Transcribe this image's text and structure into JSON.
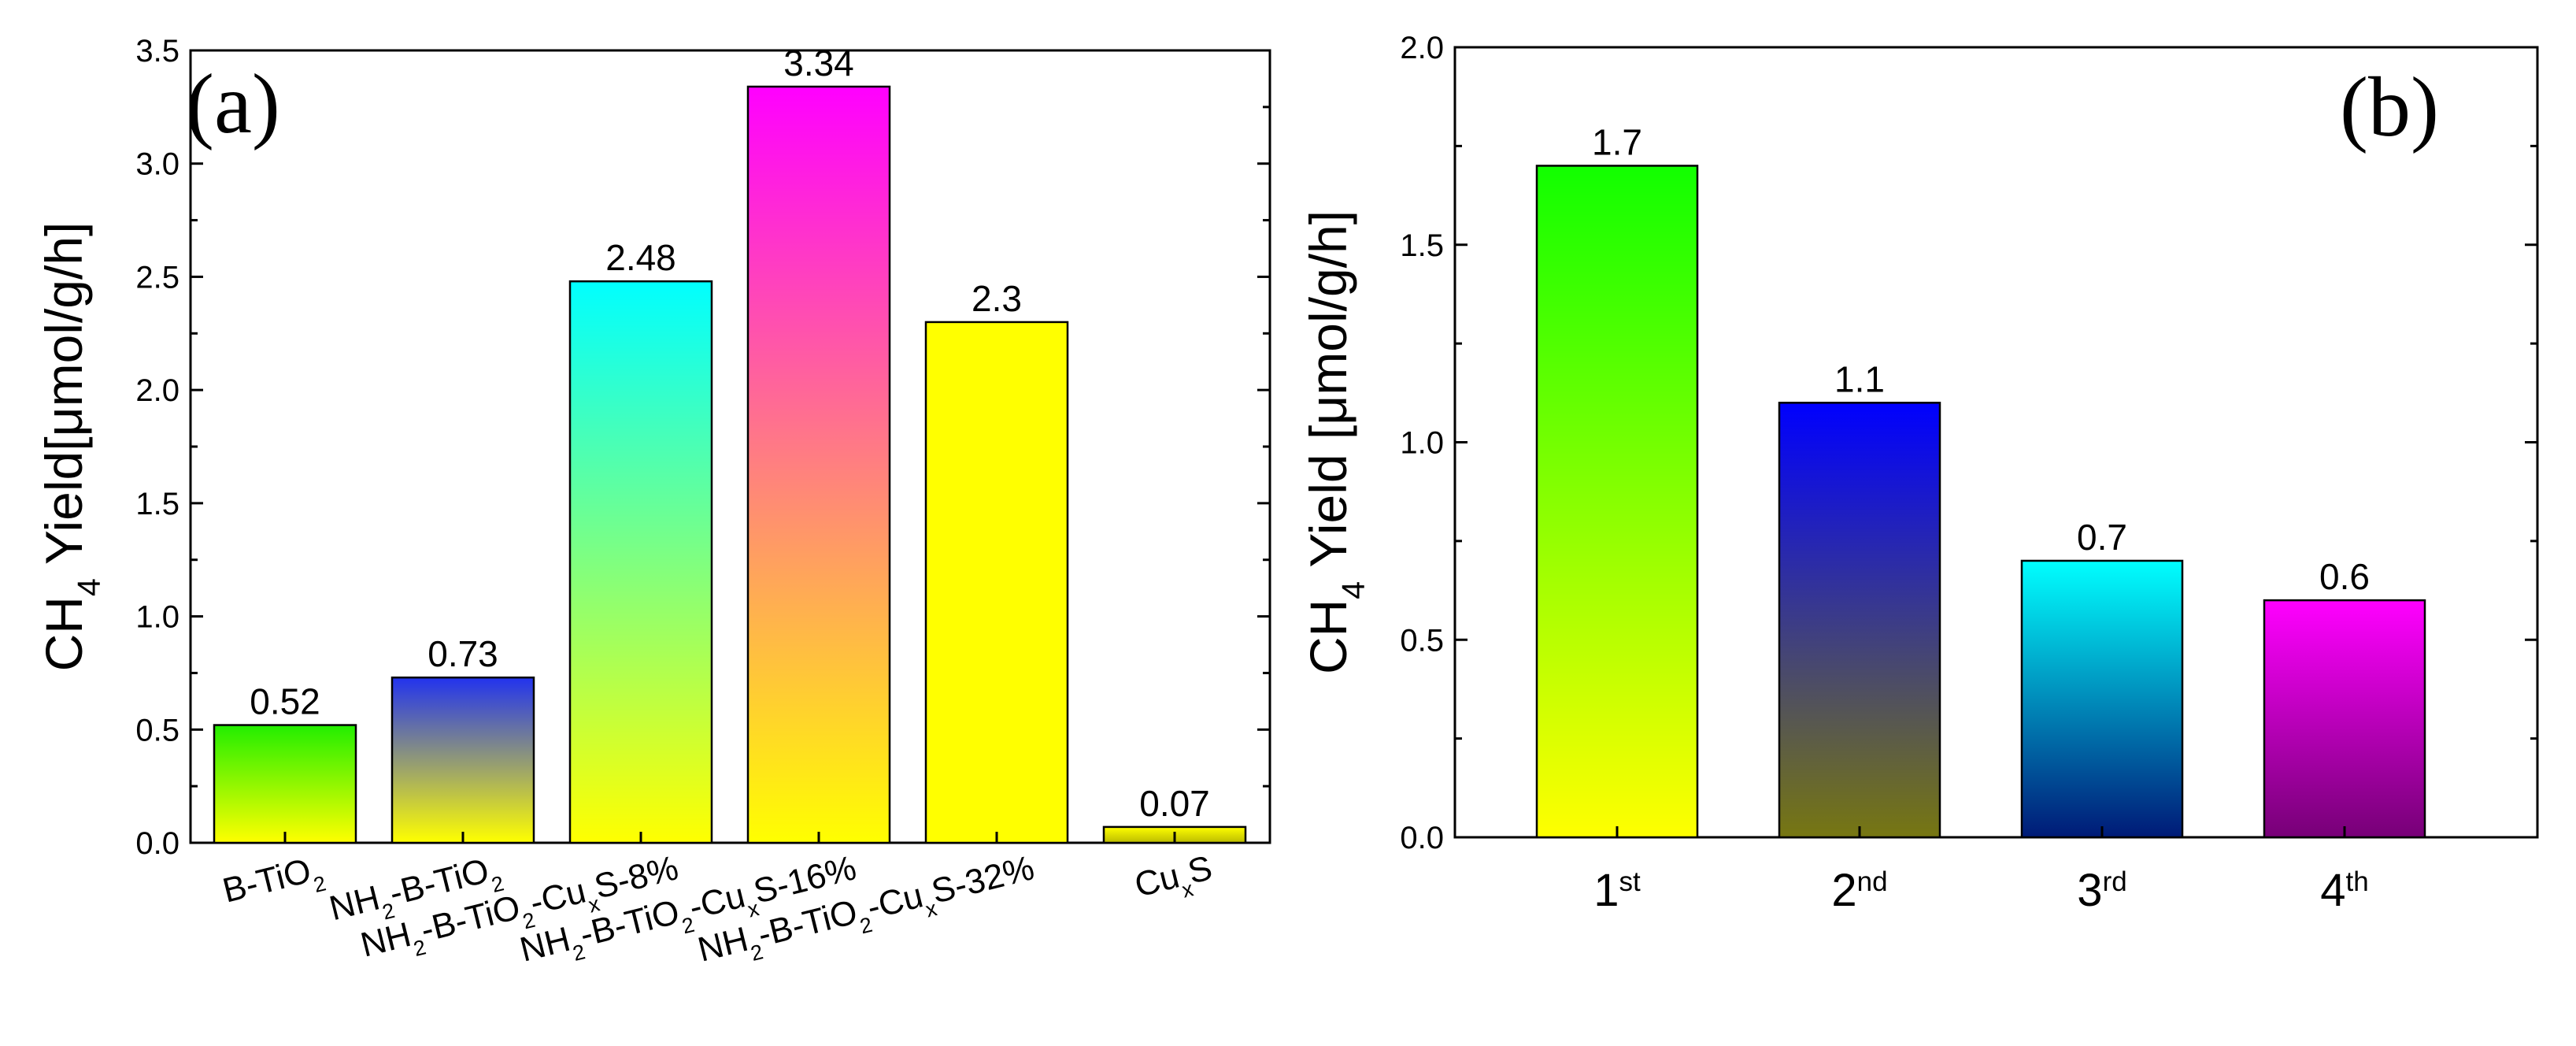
{
  "chart_data": [
    {
      "type": "bar",
      "panel_label": "(a)",
      "title": "",
      "xlabel": "",
      "ylabel": {
        "prefix": "CH",
        "sub": "4",
        "suffix": " Yield[μmol/g/h]"
      },
      "ylim": [
        0,
        3.5
      ],
      "yticks": [
        "0.0",
        "0.5",
        "1.0",
        "1.5",
        "2.0",
        "2.5",
        "3.0",
        "3.5"
      ],
      "categories": [
        [
          {
            "t": "B-TiO"
          },
          {
            "t": "2",
            "sub": true
          }
        ],
        [
          {
            "t": "NH"
          },
          {
            "t": "2",
            "sub": true
          },
          {
            "t": "-B-TiO"
          },
          {
            "t": "2",
            "sub": true
          }
        ],
        [
          {
            "t": "NH"
          },
          {
            "t": "2",
            "sub": true
          },
          {
            "t": "-B-TiO"
          },
          {
            "t": "2",
            "sub": true
          },
          {
            "t": "-Cu"
          },
          {
            "t": "x",
            "sub": true
          },
          {
            "t": "S-8%"
          }
        ],
        [
          {
            "t": "NH"
          },
          {
            "t": "2",
            "sub": true
          },
          {
            "t": "-B-TiO"
          },
          {
            "t": "2",
            "sub": true
          },
          {
            "t": "-Cu"
          },
          {
            "t": "x",
            "sub": true
          },
          {
            "t": "S-16%"
          }
        ],
        [
          {
            "t": "NH"
          },
          {
            "t": "2",
            "sub": true
          },
          {
            "t": "-B-TiO"
          },
          {
            "t": "2",
            "sub": true
          },
          {
            "t": "-Cu"
          },
          {
            "t": "x",
            "sub": true
          },
          {
            "t": "S-32%"
          }
        ],
        [
          {
            "t": "Cu"
          },
          {
            "t": "x",
            "sub": true
          },
          {
            "t": "S"
          }
        ]
      ],
      "values": [
        0.52,
        0.73,
        2.48,
        3.34,
        2.3,
        0.07
      ],
      "value_labels": [
        "0.52",
        "0.73",
        "2.48",
        "3.34",
        "2.3",
        "0.07"
      ],
      "gradients": [
        [
          "#22ee00",
          "#ffff00"
        ],
        [
          "#2233ee",
          "#ffff00"
        ],
        [
          "#00ffff",
          "#ffff00"
        ],
        [
          "#ff00ff",
          "#ffff00"
        ],
        [
          "#ffff00",
          "#ffff00"
        ],
        [
          "#ffff00",
          "#bbbb00"
        ]
      ]
    },
    {
      "type": "bar",
      "panel_label": "(b)",
      "title": "",
      "xlabel": "",
      "ylabel": {
        "prefix": "CH",
        "sub": "4",
        "suffix": " Yield [μmol/g/h]"
      },
      "ylim": [
        0,
        2.0
      ],
      "yticks": [
        "0.0",
        "0.5",
        "1.0",
        "1.5",
        "2.0"
      ],
      "categories": [
        [
          {
            "t": "1"
          },
          {
            "t": "st",
            "sup": true
          }
        ],
        [
          {
            "t": "2"
          },
          {
            "t": "nd",
            "sup": true
          }
        ],
        [
          {
            "t": "3"
          },
          {
            "t": "rd",
            "sup": true
          }
        ],
        [
          {
            "t": "4"
          },
          {
            "t": "th",
            "sup": true
          }
        ]
      ],
      "values": [
        1.7,
        1.1,
        0.7,
        0.6
      ],
      "value_labels": [
        "1.7",
        "1.1",
        "0.7",
        "0.6"
      ],
      "gradients": [
        [
          "#11ff00",
          "#ffff00"
        ],
        [
          "#0000ff",
          "#777711"
        ],
        [
          "#00ffff",
          "#001a77"
        ],
        [
          "#ff00ff",
          "#770077"
        ]
      ]
    }
  ]
}
